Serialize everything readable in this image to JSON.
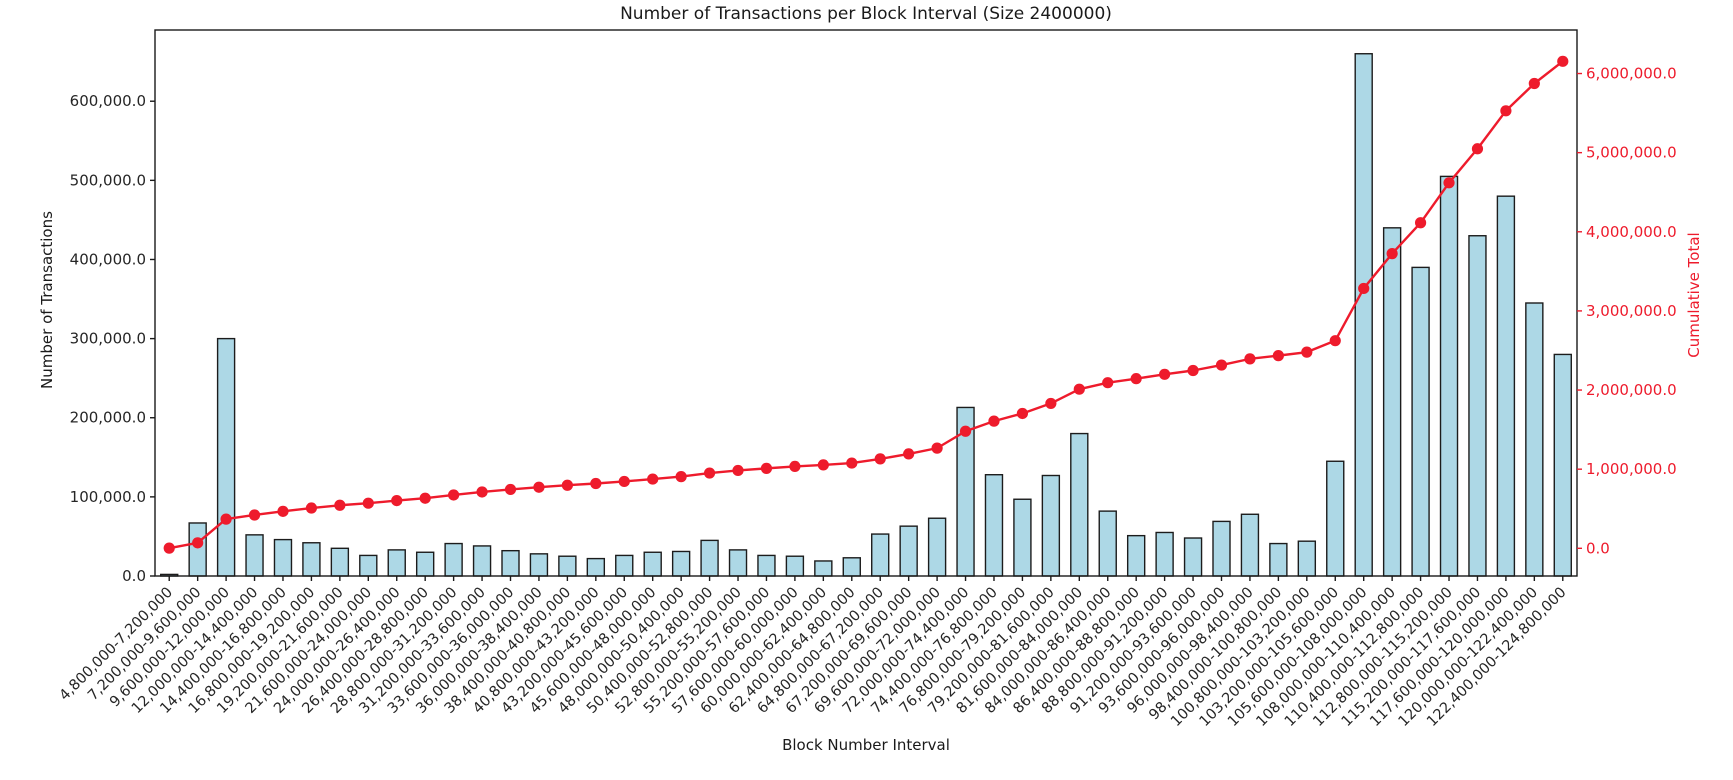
{
  "figure": {
    "title": "Number of Transactions per Block Interval (Size 2400000)",
    "xlabel": "Block Number Interval",
    "ylabel_left": "Number of Transactions",
    "ylabel_right": "Cumulative Total"
  },
  "colors": {
    "bar_fill": "#add8e6",
    "bar_edge": "#1c1c1c",
    "line": "#ee1b2c",
    "axis": "#1a1a1a",
    "tick_text": "#262626"
  },
  "chart_data": {
    "type": "bar",
    "title": "Number of Transactions per Block Interval (Size 2400000)",
    "xlabel": "Block Number Interval",
    "ylabel": "Number of Transactions",
    "ylabel_right": "Cumulative Total",
    "grid": false,
    "legend_position": "none",
    "left_ylim": [
      0,
      690000
    ],
    "right_ylim": [
      -350000,
      6550000
    ],
    "categories": [
      "4,800,000-7,200,000",
      "7,200,000-9,600,000",
      "9,600,000-12,000,000",
      "12,000,000-14,400,000",
      "14,400,000-16,800,000",
      "16,800,000-19,200,000",
      "19,200,000-21,600,000",
      "21,600,000-24,000,000",
      "24,000,000-26,400,000",
      "26,400,000-28,800,000",
      "28,800,000-31,200,000",
      "31,200,000-33,600,000",
      "33,600,000-36,000,000",
      "36,000,000-38,400,000",
      "38,400,000-40,800,000",
      "40,800,000-43,200,000",
      "43,200,000-45,600,000",
      "45,600,000-48,000,000",
      "48,000,000-50,400,000",
      "50,400,000-52,800,000",
      "52,800,000-55,200,000",
      "55,200,000-57,600,000",
      "57,600,000-60,000,000",
      "60,000,000-62,400,000",
      "62,400,000-64,800,000",
      "64,800,000-67,200,000",
      "67,200,000-69,600,000",
      "69,600,000-72,000,000",
      "72,000,000-74,400,000",
      "74,400,000-76,800,000",
      "76,800,000-79,200,000",
      "79,200,000-81,600,000",
      "81,600,000-84,000,000",
      "84,000,000-86,400,000",
      "86,400,000-88,800,000",
      "88,800,000-91,200,000",
      "91,200,000-93,600,000",
      "93,600,000-96,000,000",
      "96,000,000-98,400,000",
      "98,400,000-100,800,000",
      "100,800,000-103,200,000",
      "103,200,000-105,600,000",
      "105,600,000-108,000,000",
      "108,000,000-110,400,000",
      "110,400,000-112,800,000",
      "112,800,000-115,200,000",
      "115,200,000-117,600,000",
      "117,600,000-120,000,000",
      "120,000,000-122,400,000",
      "122,400,000-124,800,000"
    ],
    "series": [
      {
        "name": "Number of Transactions",
        "type": "bar",
        "axis": "left",
        "values": [
          2000,
          67000,
          300000,
          52000,
          46000,
          42000,
          35000,
          26000,
          33000,
          30000,
          41000,
          38000,
          32000,
          28000,
          25000,
          22000,
          26000,
          30000,
          31000,
          45000,
          33000,
          26000,
          25000,
          19000,
          23000,
          53000,
          63000,
          73000,
          213000,
          128000,
          97000,
          127000,
          180000,
          82000,
          51000,
          55000,
          48000,
          69000,
          78000,
          41000,
          44000,
          145000,
          660000,
          440000,
          390000,
          505000,
          430000,
          480000,
          345000,
          280000
        ]
      },
      {
        "name": "Cumulative Total",
        "type": "line",
        "axis": "right",
        "values": [
          2000,
          69000,
          369000,
          421000,
          467000,
          509000,
          544000,
          570000,
          603000,
          633000,
          674000,
          712000,
          744000,
          772000,
          797000,
          819000,
          845000,
          875000,
          906000,
          951000,
          984000,
          1010000,
          1035000,
          1054000,
          1077000,
          1130000,
          1193000,
          1266000,
          1479000,
          1607000,
          1704000,
          1831000,
          2011000,
          2093000,
          2144000,
          2199000,
          2247000,
          2316000,
          2394000,
          2435000,
          2479000,
          2624000,
          3284000,
          3724000,
          4114000,
          4619000,
          5049000,
          5529000,
          5874000,
          6154000
        ]
      }
    ],
    "left_ticks": {
      "values": [
        0,
        100000,
        200000,
        300000,
        400000,
        500000,
        600000
      ],
      "labels": [
        "0.0",
        "100,000.0",
        "200,000.0",
        "300,000.0",
        "400,000.0",
        "500,000.0",
        "600,000.0"
      ]
    },
    "right_ticks": {
      "values": [
        0,
        1000000,
        2000000,
        3000000,
        4000000,
        5000000,
        6000000
      ],
      "labels": [
        "0.0",
        "1,000,000.0",
        "2,000,000.0",
        "3,000,000.0",
        "4,000,000.0",
        "5,000,000.0",
        "6,000,000.0"
      ]
    }
  }
}
